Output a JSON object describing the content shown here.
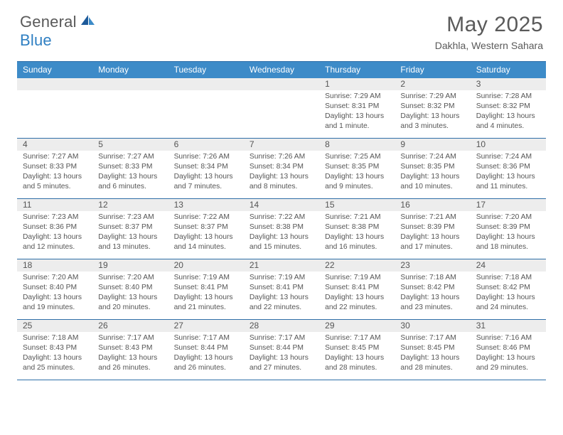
{
  "logo": {
    "text1": "General",
    "text2": "Blue"
  },
  "title": "May 2025",
  "location": "Dakhla, Western Sahara",
  "colors": {
    "header_bg": "#3d8bc8",
    "border": "#2f6fa8",
    "daynum_bg": "#ededed",
    "text": "#555555",
    "logo_gray": "#595959",
    "logo_blue": "#2f7fc2"
  },
  "day_names": [
    "Sunday",
    "Monday",
    "Tuesday",
    "Wednesday",
    "Thursday",
    "Friday",
    "Saturday"
  ],
  "weeks": [
    [
      {
        "n": "",
        "sunrise": "",
        "sunset": "",
        "daylight": ""
      },
      {
        "n": "",
        "sunrise": "",
        "sunset": "",
        "daylight": ""
      },
      {
        "n": "",
        "sunrise": "",
        "sunset": "",
        "daylight": ""
      },
      {
        "n": "",
        "sunrise": "",
        "sunset": "",
        "daylight": ""
      },
      {
        "n": "1",
        "sunrise": "Sunrise: 7:29 AM",
        "sunset": "Sunset: 8:31 PM",
        "daylight": "Daylight: 13 hours and 1 minute."
      },
      {
        "n": "2",
        "sunrise": "Sunrise: 7:29 AM",
        "sunset": "Sunset: 8:32 PM",
        "daylight": "Daylight: 13 hours and 3 minutes."
      },
      {
        "n": "3",
        "sunrise": "Sunrise: 7:28 AM",
        "sunset": "Sunset: 8:32 PM",
        "daylight": "Daylight: 13 hours and 4 minutes."
      }
    ],
    [
      {
        "n": "4",
        "sunrise": "Sunrise: 7:27 AM",
        "sunset": "Sunset: 8:33 PM",
        "daylight": "Daylight: 13 hours and 5 minutes."
      },
      {
        "n": "5",
        "sunrise": "Sunrise: 7:27 AM",
        "sunset": "Sunset: 8:33 PM",
        "daylight": "Daylight: 13 hours and 6 minutes."
      },
      {
        "n": "6",
        "sunrise": "Sunrise: 7:26 AM",
        "sunset": "Sunset: 8:34 PM",
        "daylight": "Daylight: 13 hours and 7 minutes."
      },
      {
        "n": "7",
        "sunrise": "Sunrise: 7:26 AM",
        "sunset": "Sunset: 8:34 PM",
        "daylight": "Daylight: 13 hours and 8 minutes."
      },
      {
        "n": "8",
        "sunrise": "Sunrise: 7:25 AM",
        "sunset": "Sunset: 8:35 PM",
        "daylight": "Daylight: 13 hours and 9 minutes."
      },
      {
        "n": "9",
        "sunrise": "Sunrise: 7:24 AM",
        "sunset": "Sunset: 8:35 PM",
        "daylight": "Daylight: 13 hours and 10 minutes."
      },
      {
        "n": "10",
        "sunrise": "Sunrise: 7:24 AM",
        "sunset": "Sunset: 8:36 PM",
        "daylight": "Daylight: 13 hours and 11 minutes."
      }
    ],
    [
      {
        "n": "11",
        "sunrise": "Sunrise: 7:23 AM",
        "sunset": "Sunset: 8:36 PM",
        "daylight": "Daylight: 13 hours and 12 minutes."
      },
      {
        "n": "12",
        "sunrise": "Sunrise: 7:23 AM",
        "sunset": "Sunset: 8:37 PM",
        "daylight": "Daylight: 13 hours and 13 minutes."
      },
      {
        "n": "13",
        "sunrise": "Sunrise: 7:22 AM",
        "sunset": "Sunset: 8:37 PM",
        "daylight": "Daylight: 13 hours and 14 minutes."
      },
      {
        "n": "14",
        "sunrise": "Sunrise: 7:22 AM",
        "sunset": "Sunset: 8:38 PM",
        "daylight": "Daylight: 13 hours and 15 minutes."
      },
      {
        "n": "15",
        "sunrise": "Sunrise: 7:21 AM",
        "sunset": "Sunset: 8:38 PM",
        "daylight": "Daylight: 13 hours and 16 minutes."
      },
      {
        "n": "16",
        "sunrise": "Sunrise: 7:21 AM",
        "sunset": "Sunset: 8:39 PM",
        "daylight": "Daylight: 13 hours and 17 minutes."
      },
      {
        "n": "17",
        "sunrise": "Sunrise: 7:20 AM",
        "sunset": "Sunset: 8:39 PM",
        "daylight": "Daylight: 13 hours and 18 minutes."
      }
    ],
    [
      {
        "n": "18",
        "sunrise": "Sunrise: 7:20 AM",
        "sunset": "Sunset: 8:40 PM",
        "daylight": "Daylight: 13 hours and 19 minutes."
      },
      {
        "n": "19",
        "sunrise": "Sunrise: 7:20 AM",
        "sunset": "Sunset: 8:40 PM",
        "daylight": "Daylight: 13 hours and 20 minutes."
      },
      {
        "n": "20",
        "sunrise": "Sunrise: 7:19 AM",
        "sunset": "Sunset: 8:41 PM",
        "daylight": "Daylight: 13 hours and 21 minutes."
      },
      {
        "n": "21",
        "sunrise": "Sunrise: 7:19 AM",
        "sunset": "Sunset: 8:41 PM",
        "daylight": "Daylight: 13 hours and 22 minutes."
      },
      {
        "n": "22",
        "sunrise": "Sunrise: 7:19 AM",
        "sunset": "Sunset: 8:41 PM",
        "daylight": "Daylight: 13 hours and 22 minutes."
      },
      {
        "n": "23",
        "sunrise": "Sunrise: 7:18 AM",
        "sunset": "Sunset: 8:42 PM",
        "daylight": "Daylight: 13 hours and 23 minutes."
      },
      {
        "n": "24",
        "sunrise": "Sunrise: 7:18 AM",
        "sunset": "Sunset: 8:42 PM",
        "daylight": "Daylight: 13 hours and 24 minutes."
      }
    ],
    [
      {
        "n": "25",
        "sunrise": "Sunrise: 7:18 AM",
        "sunset": "Sunset: 8:43 PM",
        "daylight": "Daylight: 13 hours and 25 minutes."
      },
      {
        "n": "26",
        "sunrise": "Sunrise: 7:17 AM",
        "sunset": "Sunset: 8:43 PM",
        "daylight": "Daylight: 13 hours and 26 minutes."
      },
      {
        "n": "27",
        "sunrise": "Sunrise: 7:17 AM",
        "sunset": "Sunset: 8:44 PM",
        "daylight": "Daylight: 13 hours and 26 minutes."
      },
      {
        "n": "28",
        "sunrise": "Sunrise: 7:17 AM",
        "sunset": "Sunset: 8:44 PM",
        "daylight": "Daylight: 13 hours and 27 minutes."
      },
      {
        "n": "29",
        "sunrise": "Sunrise: 7:17 AM",
        "sunset": "Sunset: 8:45 PM",
        "daylight": "Daylight: 13 hours and 28 minutes."
      },
      {
        "n": "30",
        "sunrise": "Sunrise: 7:17 AM",
        "sunset": "Sunset: 8:45 PM",
        "daylight": "Daylight: 13 hours and 28 minutes."
      },
      {
        "n": "31",
        "sunrise": "Sunrise: 7:16 AM",
        "sunset": "Sunset: 8:46 PM",
        "daylight": "Daylight: 13 hours and 29 minutes."
      }
    ]
  ]
}
